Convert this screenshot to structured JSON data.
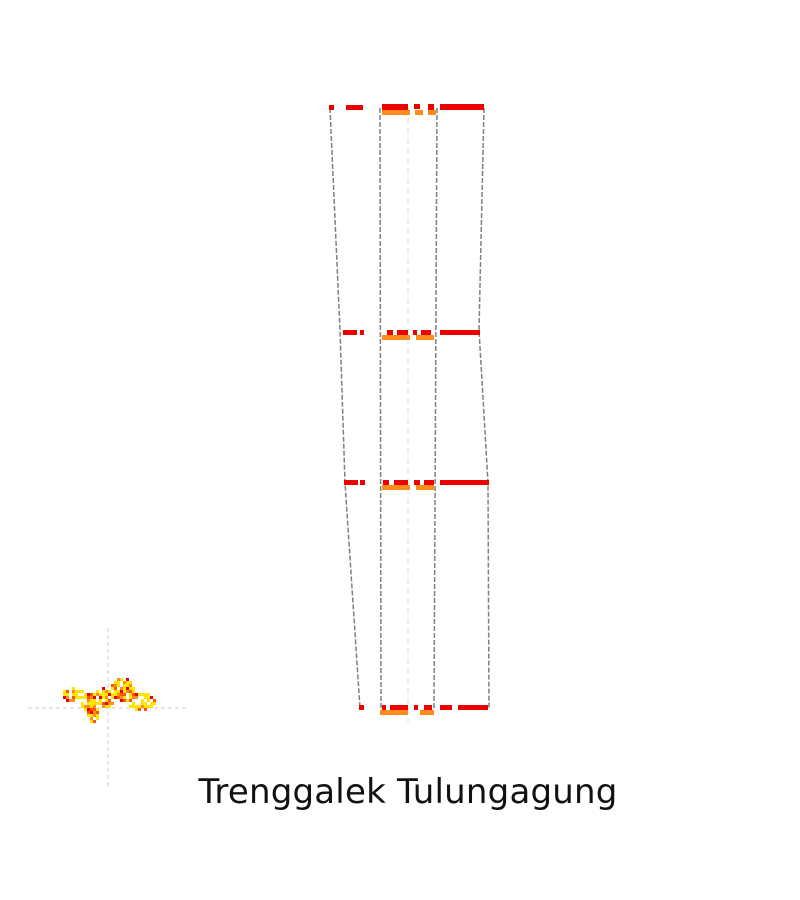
{
  "caption": "Trenggalek Tulungagung",
  "colors": {
    "outline": "#808080",
    "axis": "#cccccc",
    "red": "#ee0000",
    "orange": "#ff8c1a",
    "yellow": "#ffe600",
    "darkorange": "#ff5500"
  }
}
